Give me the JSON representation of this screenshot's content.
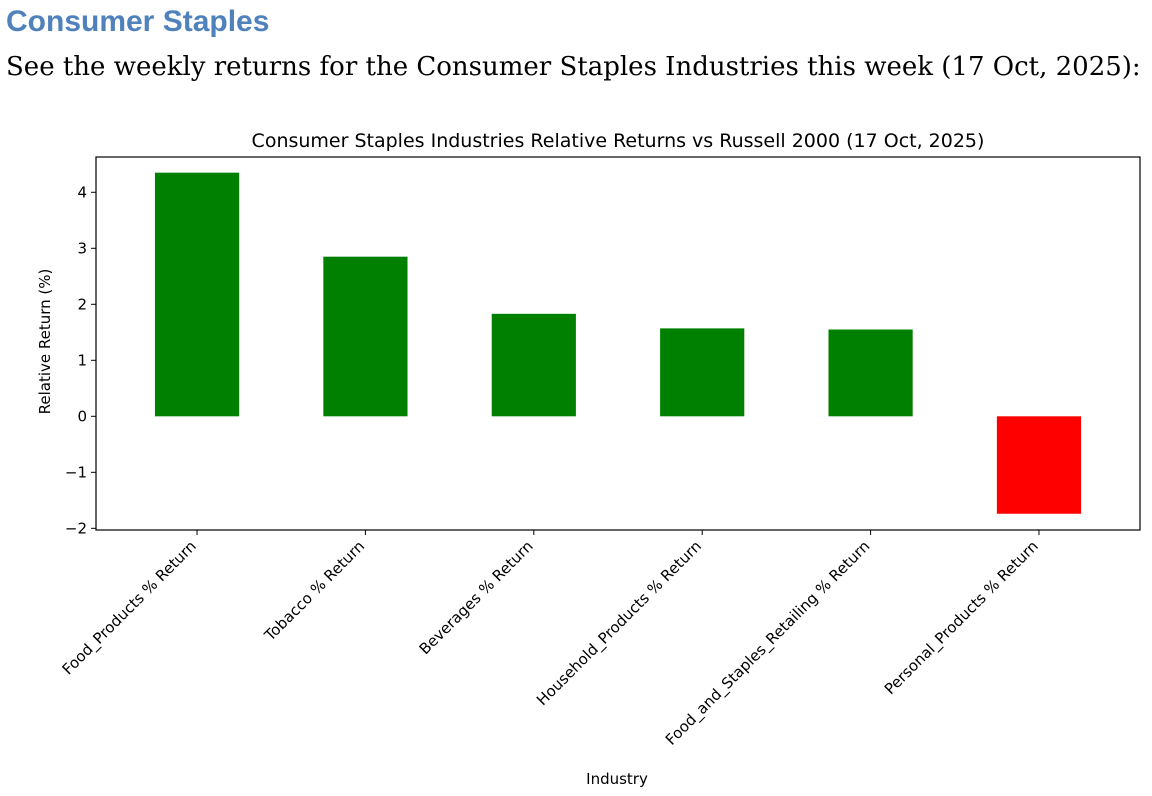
{
  "document": {
    "heading": "Consumer Staples",
    "intro": "See the weekly returns for the Consumer Staples Industries this week (17 Oct, 2025):"
  },
  "colors": {
    "heading": "#4f81bd",
    "positive": "#008000",
    "negative": "#ff0000"
  },
  "chart_data": {
    "type": "bar",
    "title": "Consumer Staples Industries Relative Returns vs Russell 2000 (17 Oct, 2025)",
    "xlabel": "Industry",
    "ylabel": "Relative Return (%)",
    "categories": [
      "Food_Products % Return",
      "Tobacco % Return",
      "Beverages % Return",
      "Household_Products % Return",
      "Food_and_Staples_Retailing % Return",
      "Personal_Products % Return"
    ],
    "values": [
      4.35,
      2.85,
      1.83,
      1.57,
      1.55,
      -1.74
    ],
    "ylim": [
      -2.03,
      4.63
    ],
    "yticks": [
      -2,
      -1,
      0,
      1,
      2,
      3,
      4
    ],
    "ytick_labels": [
      "−2",
      "−1",
      "0",
      "1",
      "2",
      "3",
      "4"
    ],
    "grid": false,
    "legend": false
  }
}
